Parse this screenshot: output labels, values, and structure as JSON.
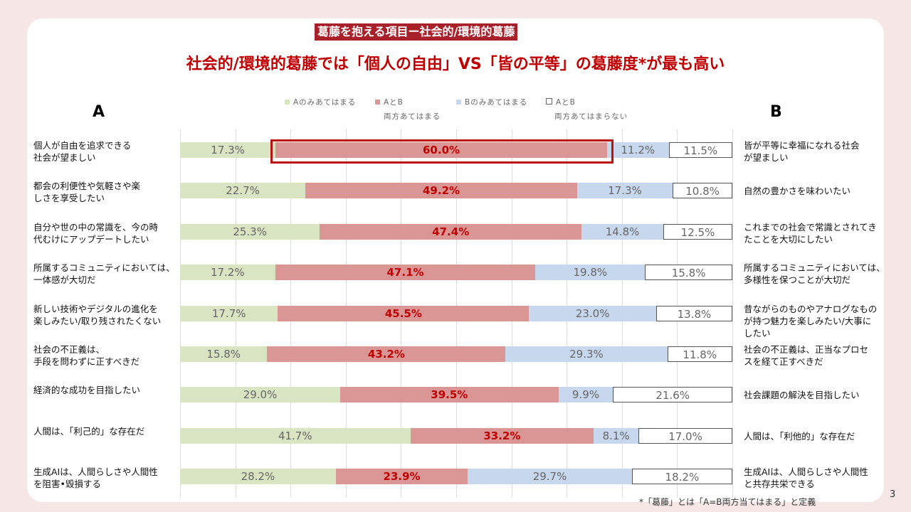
{
  "header": {
    "tag": "葛藤を抱える項目ー社会的/環境的葛藤",
    "title": "社会的/環境的葛藤では「個人の自由」VS「皆の平等」の葛藤度*が最も高い",
    "col_a": "A",
    "col_b": "B"
  },
  "footnote": "*「葛藤」とは「A=B両方当てはまる」と定義",
  "page_number": "3",
  "colors": {
    "a_only": "#d9e4c3",
    "both": "#da9694",
    "b_only": "#c6d7ee",
    "neither": "#ffffff",
    "accent": "#c00000"
  },
  "chart_data": {
    "type": "bar",
    "stacked": true,
    "orientation": "horizontal",
    "xlim": [
      0,
      100
    ],
    "grid": true,
    "legend_position": "top",
    "legend": [
      "Aのみあてはまる",
      "AとB 両方あてはまる",
      "Bのみあてはまる",
      "AとB 両方あてはまらない"
    ],
    "legend_lines": [
      [
        "Aのみあてはまる",
        ""
      ],
      [
        "AとB",
        "両方あてはまる"
      ],
      [
        "Bのみあてはまる",
        ""
      ],
      [
        "AとB",
        "両方あてはまらない"
      ]
    ],
    "rows": [
      {
        "a": "個人が自由を追求できる\n社会が望ましい",
        "b": "皆が平等に幸福になれる社会\nが望ましい",
        "values": [
          17.3,
          60.0,
          11.2,
          11.5
        ],
        "labels": [
          "17.3%",
          "60.0%",
          "11.2%",
          "11.5%"
        ],
        "highlight": true
      },
      {
        "a": "都会の利便性や気軽さや楽\nしさを享受したい",
        "b": "自然の豊かさを味わいたい",
        "values": [
          22.7,
          49.2,
          17.3,
          10.8
        ],
        "labels": [
          "22.7%",
          "49.2%",
          "17.3%",
          "10.8%"
        ]
      },
      {
        "a": "自分や世の中の常識を、今の時\n代むけにアップデートしたい",
        "b": "これまでの社会で常識とされてき\nたことを大切にしたい",
        "values": [
          25.3,
          47.4,
          14.8,
          12.5
        ],
        "labels": [
          "25.3%",
          "47.4%",
          "14.8%",
          "12.5%"
        ]
      },
      {
        "a": "所属するコミュニティにおいては、\n一体感が大切だ",
        "b": "所属するコミュニティにおいては、\n多様性を保つことが大切だ",
        "values": [
          17.2,
          47.1,
          19.8,
          15.8
        ],
        "labels": [
          "17.2%",
          "47.1%",
          "19.8%",
          "15.8%"
        ]
      },
      {
        "a": "新しい技術やデジタルの進化を\n楽しみたい/取り残されたくない",
        "b": "昔ながらのものやアナログなもの\nが持つ魅力を楽しみたい/大事に\nしたい",
        "values": [
          17.7,
          45.5,
          23.0,
          13.8
        ],
        "labels": [
          "17.7%",
          "45.5%",
          "23.0%",
          "13.8%"
        ]
      },
      {
        "a": "社会の不正義は、\n手段を問わずに正すべきだ",
        "b": "社会の不正義は、正当なプロセ\nスを経て正すべきだ",
        "values": [
          15.8,
          43.2,
          29.3,
          11.8
        ],
        "labels": [
          "15.8%",
          "43.2%",
          "29.3%",
          "11.8%"
        ]
      },
      {
        "a": "経済的な成功を目指したい",
        "b": "社会課題の解決を目指したい",
        "values": [
          29.0,
          39.5,
          9.9,
          21.6
        ],
        "labels": [
          "29.0%",
          "39.5%",
          "9.9%",
          "21.6%"
        ]
      },
      {
        "a": "人間は、「利己的」な存在だ",
        "b": "人間は、「利他的」な存在だ",
        "values": [
          41.7,
          33.2,
          8.1,
          17.0
        ],
        "labels": [
          "41.7%",
          "33.2%",
          "8.1%",
          "17.0%"
        ]
      },
      {
        "a": "生成AIは、人間らしさや人間性\nを阻害•毀損する",
        "b": "生成AIは、人間らしさや人間性\nと共存共栄できる",
        "values": [
          28.2,
          23.9,
          29.7,
          18.2
        ],
        "labels": [
          "28.2%",
          "23.9%",
          "29.7%",
          "18.2%"
        ]
      }
    ]
  }
}
